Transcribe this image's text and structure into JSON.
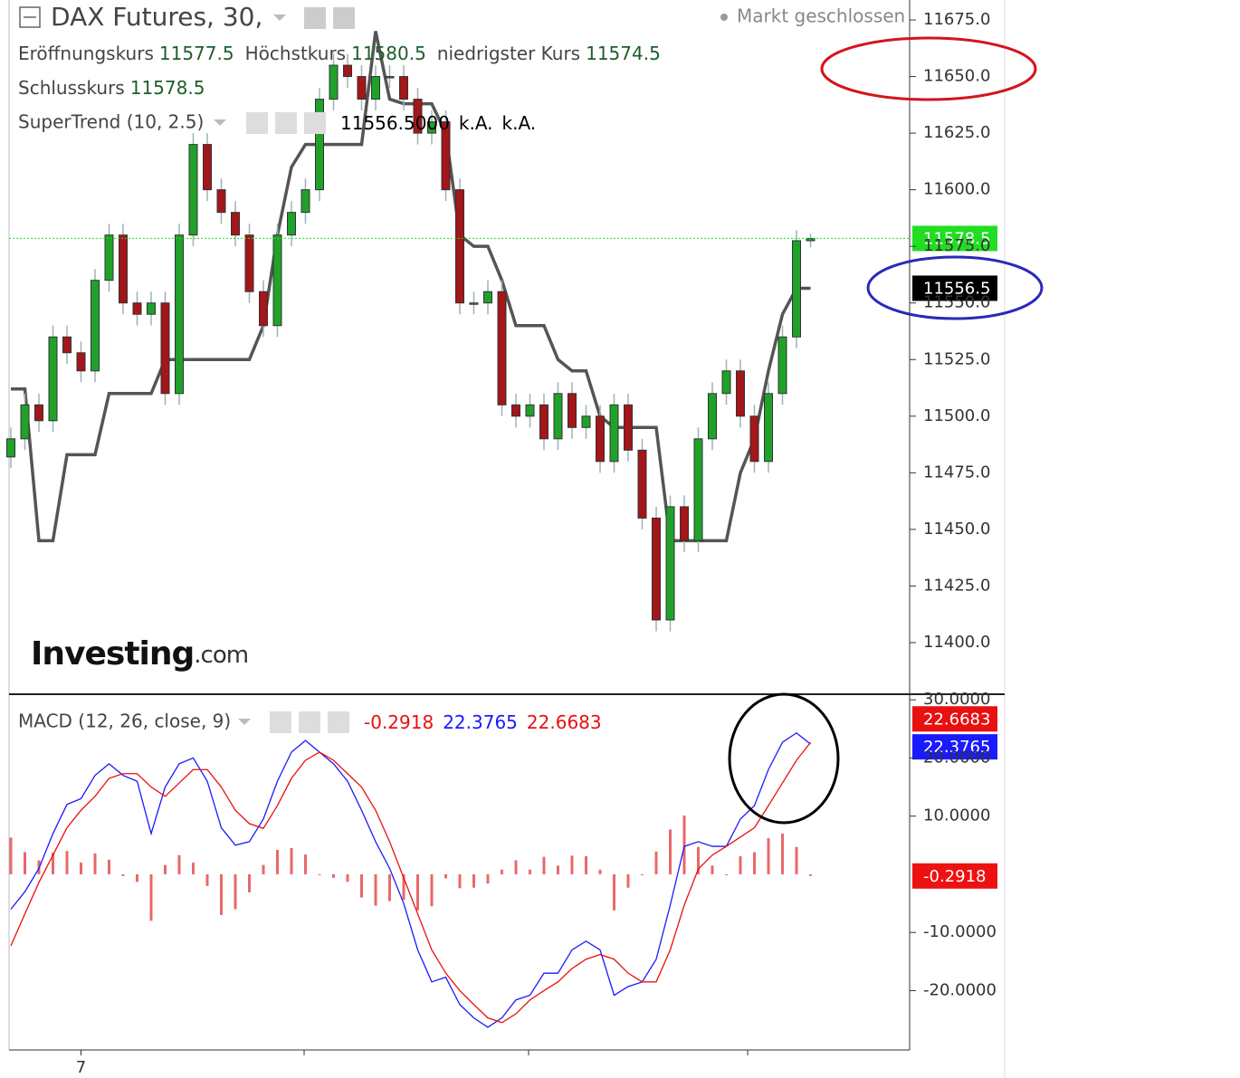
{
  "chart_data": [
    {
      "type": "candlestick",
      "title": "DAX Futures, 30,",
      "status": "Markt geschlossen",
      "ohlc_labels": [
        "Eröffnungskurs",
        "Höchstkurs",
        "niedrigster Kurs",
        "Schlusskurs"
      ],
      "categories": [
        null,
        null,
        null,
        null,
        null,
        "7",
        null,
        null,
        null,
        null,
        null,
        null,
        null,
        null,
        null,
        null,
        null,
        null,
        null,
        null,
        null,
        null,
        null,
        null,
        null,
        null,
        null,
        null,
        null,
        null,
        null,
        null,
        null,
        null,
        null,
        null,
        null,
        null,
        null,
        null,
        null,
        null,
        null,
        null,
        null,
        null,
        null,
        null,
        null,
        null,
        null,
        null,
        null,
        null,
        null,
        null,
        null,
        null
      ],
      "open": [
        11482,
        11490,
        11505,
        11498,
        11535,
        11528,
        11520,
        11560,
        11580,
        11550,
        11545,
        11550,
        11510,
        11580,
        11620,
        11600,
        11590,
        11580,
        11555,
        11540,
        11580,
        11590,
        11600,
        11640,
        11655,
        11650,
        11640,
        11650,
        11650,
        11640,
        11625,
        11630,
        11600,
        11550,
        11550,
        11555,
        11505,
        11500,
        11505,
        11490,
        11510,
        11495,
        11500,
        11480,
        11505,
        11485,
        11455,
        11410,
        11460,
        11445,
        11490,
        11510,
        11520,
        11500,
        11480,
        11510,
        11535,
        11577.5
      ],
      "high": [
        11495,
        11510,
        11510,
        11540,
        11540,
        11533,
        11565,
        11585,
        11585,
        11555,
        11555,
        11555,
        11585,
        11625,
        11625,
        11605,
        11595,
        11585,
        11560,
        11585,
        11595,
        11605,
        11645,
        11660,
        11660,
        11655,
        11655,
        11655,
        11655,
        11645,
        11635,
        11635,
        11605,
        11555,
        11560,
        11560,
        11510,
        11510,
        11510,
        11515,
        11515,
        11505,
        11505,
        11510,
        11510,
        11490,
        11460,
        11465,
        11465,
        11495,
        11515,
        11525,
        11525,
        11505,
        11515,
        11540,
        11582,
        11580.5
      ],
      "low": [
        11477,
        11485,
        11493,
        11493,
        11523,
        11515,
        11515,
        11555,
        11545,
        11540,
        11540,
        11505,
        11505,
        11575,
        11595,
        11585,
        11575,
        11550,
        11535,
        11535,
        11575,
        11585,
        11595,
        11635,
        11645,
        11635,
        11635,
        11645,
        11635,
        11620,
        11620,
        11595,
        11545,
        11545,
        11545,
        11500,
        11495,
        11495,
        11485,
        11485,
        11490,
        11490,
        11475,
        11475,
        11480,
        11450,
        11405,
        11405,
        11440,
        11440,
        11485,
        11505,
        11495,
        11475,
        11475,
        11505,
        11530,
        11574.5
      ],
      "close": [
        11490,
        11505,
        11498,
        11535,
        11528,
        11520,
        11560,
        11580,
        11550,
        11545,
        11550,
        11510,
        11580,
        11620,
        11600,
        11590,
        11580,
        11555,
        11540,
        11580,
        11590,
        11600,
        11640,
        11655,
        11650,
        11640,
        11650,
        11650,
        11640,
        11625,
        11630,
        11600,
        11550,
        11550,
        11555,
        11505,
        11500,
        11505,
        11490,
        11510,
        11495,
        11500,
        11480,
        11505,
        11485,
        11455,
        11410,
        11460,
        11445,
        11490,
        11510,
        11520,
        11500,
        11480,
        11510,
        11535,
        11577.5,
        11578.5
      ],
      "up_color": "#1fa12a",
      "down_color": "#a3161a",
      "supertrend": {
        "name": "SuperTrend (10, 2.5)",
        "value_label": "11556.5000",
        "na_labels": [
          "k.A.",
          "k.A."
        ],
        "color": "#555555",
        "values": [
          11512,
          11512,
          11445,
          11445,
          11483,
          11483,
          11483,
          11510,
          11510,
          11510,
          11510,
          11525,
          11525,
          11525,
          11525,
          11525,
          11525,
          11525,
          11540,
          11580,
          11610,
          11620,
          11620,
          11620,
          11620,
          11620,
          11670,
          11640,
          11638,
          11638,
          11638,
          11625,
          11580,
          11575,
          11575,
          11560,
          11540,
          11540,
          11540,
          11525,
          11520,
          11520,
          11500,
          11495,
          11495,
          11495,
          11495,
          11445,
          11445,
          11445,
          11445,
          11445,
          11475,
          11490,
          11520,
          11545,
          11556.5,
          11556.5
        ]
      },
      "watermark": [
        "Investing",
        ".com"
      ],
      "ylim": [
        11378,
        11683.8
      ],
      "yticks": [
        {
          "value": 11400,
          "label": "11400.0"
        },
        {
          "value": 11425,
          "label": "11425.0"
        },
        {
          "value": 11450,
          "label": "11450.0"
        },
        {
          "value": 11475,
          "label": "11475.0"
        },
        {
          "value": 11500,
          "label": "11500.0"
        },
        {
          "value": 11525,
          "label": "11525.0"
        },
        {
          "value": 11550,
          "label": "11550.0"
        },
        {
          "value": 11575,
          "label": "11575.0"
        },
        {
          "value": 11600,
          "label": "11600.0"
        },
        {
          "value": 11625,
          "label": "11625.0"
        },
        {
          "value": 11650,
          "label": "11650.0"
        },
        {
          "value": 11675,
          "label": "11675.0"
        }
      ]
    },
    {
      "type": "macd",
      "title": "MACD (12, 26, close, 9)",
      "series": [
        {
          "kind": "bar",
          "color": "#e8686a",
          "values": [
            6.3,
            3.8,
            2.4,
            3.7,
            4,
            2,
            3.6,
            2.5,
            -0.3,
            -1.3,
            -8,
            1.6,
            3.3,
            2,
            -2,
            -7,
            -6,
            -3.1,
            1.6,
            4.2,
            4.5,
            3.4,
            0,
            -0.6,
            -1.3,
            -4,
            -5.4,
            -4.6,
            -4.4,
            -6.2,
            -5.5,
            -0.7,
            -2.4,
            -2.3,
            -1.6,
            0.8,
            2.4,
            0.8,
            3,
            1.5,
            3.2,
            3.1,
            0.8,
            -6.2,
            -2.3,
            0,
            3.9,
            7.7,
            10.1,
            4.7,
            1.5,
            0,
            3.1,
            3.8,
            6.2,
            7,
            4.7,
            -0.2918
          ]
        },
        {
          "kind": "line",
          "color": "#1a1aff",
          "values": [
            -6,
            -3,
            1,
            7,
            12,
            13,
            17,
            19,
            17,
            16,
            7,
            15,
            19,
            20,
            16,
            8,
            5,
            5.6,
            9.5,
            16,
            21,
            23,
            21,
            19,
            16,
            11,
            5.6,
            1,
            -5,
            -13,
            -18.5,
            -17.7,
            -22.4,
            -24.7,
            -26.3,
            -24.7,
            -21.6,
            -20.8,
            -17,
            -17,
            -13,
            -11.5,
            -13,
            -20.8,
            -19.3,
            -18.5,
            -14.6,
            -5.3,
            4.8,
            5.6,
            4.8,
            4.8,
            9.5,
            11.8,
            18,
            22.7,
            24.3,
            22.3765
          ]
        },
        {
          "kind": "line",
          "color": "#e81010",
          "values": [
            -12.3,
            -6.8,
            -1.4,
            3.3,
            8,
            11,
            13.4,
            16.5,
            17.3,
            17.3,
            15,
            13.4,
            15.7,
            18,
            18,
            15,
            11,
            8.7,
            7.9,
            11.8,
            16.5,
            19.6,
            21,
            19.6,
            17.3,
            15,
            11,
            5.6,
            -0.6,
            -6.8,
            -13,
            -17,
            -20,
            -22.4,
            -24.7,
            -25.5,
            -24,
            -21.6,
            -20,
            -18.5,
            -16.2,
            -14.6,
            -13.8,
            -14.6,
            -17,
            -18.5,
            -18.5,
            -13,
            -5.3,
            0.9,
            3.3,
            4.8,
            6.4,
            8,
            11.8,
            15.7,
            19.6,
            22.6683
          ]
        }
      ],
      "ylim": [
        -30.2,
        30.8
      ],
      "yticks": [
        {
          "value": -20,
          "label": "-20.0000"
        },
        {
          "value": -10,
          "label": "-10.0000"
        },
        {
          "value": 10,
          "label": "10.0000"
        },
        {
          "value": 20,
          "label": "20.0000"
        },
        {
          "value": 30,
          "label": "30.0000"
        }
      ]
    }
  ]
}
